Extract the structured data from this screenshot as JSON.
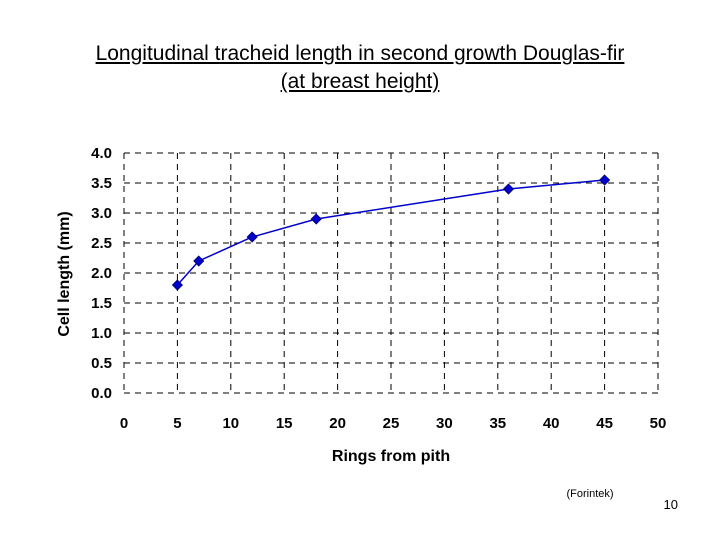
{
  "slide": {
    "title_line1": "Longitudinal tracheid length in second growth Douglas-fir",
    "title_line2": "(at breast height)",
    "source": "(Forintek)",
    "page_number": "10"
  },
  "chart_data": {
    "type": "line",
    "xlabel": "Rings from pith",
    "ylabel": "Cell length (mm)",
    "xlim": [
      0,
      50
    ],
    "ylim": [
      0,
      4
    ],
    "x_ticks": [
      "0",
      "5",
      "10",
      "15",
      "20",
      "25",
      "30",
      "35",
      "40",
      "45",
      "50"
    ],
    "y_ticks": [
      "0.0",
      "0.5",
      "1.0",
      "1.5",
      "2.0",
      "2.5",
      "3.0",
      "3.5",
      "4.0"
    ],
    "grid": "dashed",
    "series": [
      {
        "x": [
          5,
          7,
          12,
          18,
          36,
          45
        ],
        "y": [
          1.8,
          2.2,
          2.6,
          2.9,
          3.4,
          3.55
        ]
      }
    ],
    "colors": {
      "series": "#0000cc",
      "grid": "#000000"
    }
  }
}
